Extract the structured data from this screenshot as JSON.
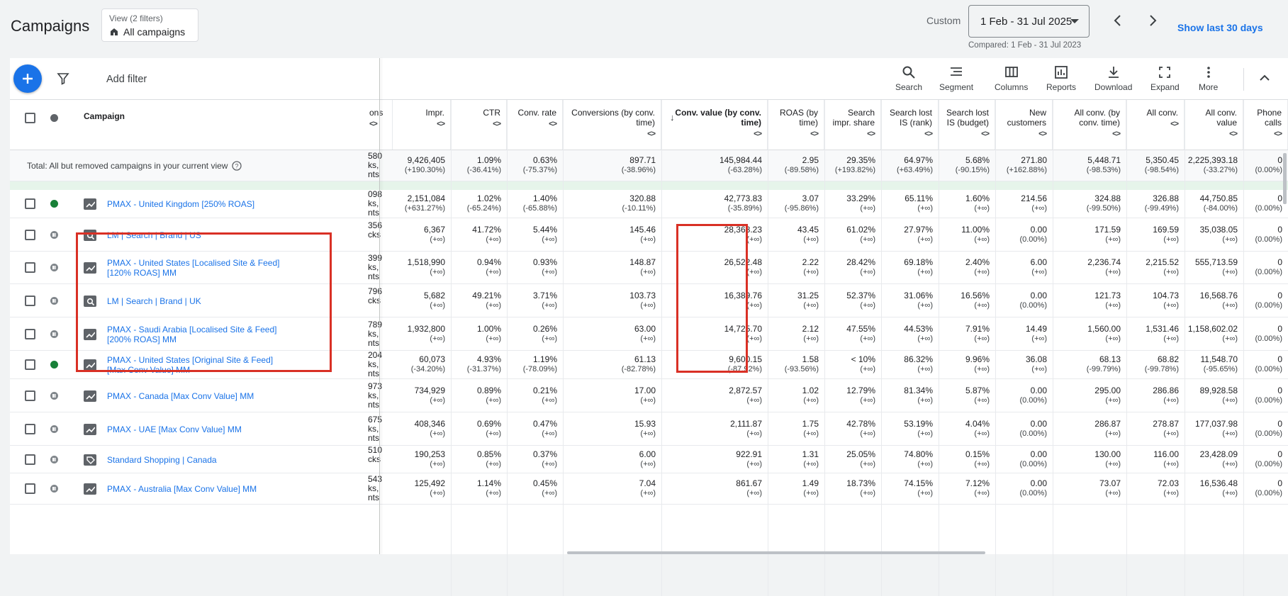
{
  "header": {
    "title": "Campaigns",
    "view_filters": "View (2 filters)",
    "view_name": "All campaigns",
    "custom_label": "Custom",
    "date_range": "1 Feb - 31 Jul 2025",
    "compared": "Compared: 1 Feb - 31 Jul 2023",
    "show_last": "Show last 30 days"
  },
  "toolbar": {
    "add_filter": "Add filter",
    "tools": [
      "Search",
      "Segment",
      "Columns",
      "Reports",
      "Download",
      "Expand",
      "More"
    ]
  },
  "columns": {
    "campaign": "Campaign",
    "partial": "ons",
    "list": [
      "Impr.",
      "CTR",
      "Conv. rate",
      "Conversions (by conv. time)",
      "Conv. value (by conv. time)",
      "ROAS (by time)",
      "Search impr. share",
      "Search lost IS (rank)",
      "Search lost IS (budget)",
      "New customers",
      "All conv. (by conv. time)",
      "All conv.",
      "All conv. value",
      "Phone calls"
    ],
    "sort_glyph": "<>"
  },
  "total": {
    "label": "Total: All but removed campaigns in your current view",
    "partial": [
      "580",
      "ks,",
      "nts"
    ],
    "values": [
      [
        "9,426,405",
        "(+190.30%)"
      ],
      [
        "1.09%",
        "(-36.41%)"
      ],
      [
        "0.63%",
        "(-75.37%)"
      ],
      [
        "897.71",
        "(-38.96%)"
      ],
      [
        "145,984.44",
        "(-63.28%)"
      ],
      [
        "2.95",
        "(-89.58%)"
      ],
      [
        "29.35%",
        "(+193.82%)"
      ],
      [
        "64.97%",
        "(+63.49%)"
      ],
      [
        "5.68%",
        "(-90.15%)"
      ],
      [
        "271.80",
        "(+162.88%)"
      ],
      [
        "5,448.71",
        "(-98.53%)"
      ],
      [
        "5,350.45",
        "(-98.54%)"
      ],
      [
        "2,225,393.18",
        "(-33.27%)"
      ],
      [
        "0",
        "(0.00%)"
      ]
    ]
  },
  "rows": [
    {
      "name": [
        "PMAX - United Kingdom [250% ROAS]"
      ],
      "status": "green",
      "type": "pmax",
      "partial": [
        "098",
        "ks,",
        "nts"
      ],
      "values": [
        [
          "2,151,084",
          "(+631.27%)"
        ],
        [
          "1.02%",
          "(-65.24%)"
        ],
        [
          "1.40%",
          "(-65.88%)"
        ],
        [
          "320.88",
          "(-10.11%)"
        ],
        [
          "42,773.83",
          "(-35.89%)"
        ],
        [
          "3.07",
          "(-95.86%)"
        ],
        [
          "33.29%",
          "(+∞)"
        ],
        [
          "65.11%",
          "(+∞)"
        ],
        [
          "1.60%",
          "(+∞)"
        ],
        [
          "214.56",
          "(+∞)"
        ],
        [
          "324.88",
          "(-99.50%)"
        ],
        [
          "326.88",
          "(-99.49%)"
        ],
        [
          "44,750.85",
          "(-84.00%)"
        ],
        [
          "0",
          "(0.00%)"
        ]
      ]
    },
    {
      "name": [
        "LM | Search | Brand | US"
      ],
      "status": "paused",
      "type": "search",
      "partial": [
        "356",
        "cks",
        ""
      ],
      "values": [
        [
          "6,367",
          "(+∞)"
        ],
        [
          "41.72%",
          "(+∞)"
        ],
        [
          "5.44%",
          "(+∞)"
        ],
        [
          "145.46",
          "(+∞)"
        ],
        [
          "28,368.23",
          "(+∞)"
        ],
        [
          "43.45",
          "(+∞)"
        ],
        [
          "61.02%",
          "(+∞)"
        ],
        [
          "27.97%",
          "(+∞)"
        ],
        [
          "11.00%",
          "(+∞)"
        ],
        [
          "0.00",
          "(0.00%)"
        ],
        [
          "171.59",
          "(+∞)"
        ],
        [
          "169.59",
          "(+∞)"
        ],
        [
          "35,038.05",
          "(+∞)"
        ],
        [
          "0",
          "(0.00%)"
        ]
      ]
    },
    {
      "name": [
        "PMAX - United States [Localised Site & Feed]",
        "[120% ROAS] MM"
      ],
      "status": "paused",
      "type": "pmax",
      "partial": [
        "399",
        "ks,",
        "nts"
      ],
      "values": [
        [
          "1,518,990",
          "(+∞)"
        ],
        [
          "0.94%",
          "(+∞)"
        ],
        [
          "0.93%",
          "(+∞)"
        ],
        [
          "148.87",
          "(+∞)"
        ],
        [
          "26,522.48",
          "(+∞)"
        ],
        [
          "2.22",
          "(+∞)"
        ],
        [
          "28.42%",
          "(+∞)"
        ],
        [
          "69.18%",
          "(+∞)"
        ],
        [
          "2.40%",
          "(+∞)"
        ],
        [
          "6.00",
          "(+∞)"
        ],
        [
          "2,236.74",
          "(+∞)"
        ],
        [
          "2,215.52",
          "(+∞)"
        ],
        [
          "555,713.59",
          "(+∞)"
        ],
        [
          "0",
          "(0.00%)"
        ]
      ]
    },
    {
      "name": [
        "LM | Search | Brand | UK"
      ],
      "status": "paused",
      "type": "search",
      "partial": [
        "796",
        "cks",
        ""
      ],
      "values": [
        [
          "5,682",
          "(+∞)"
        ],
        [
          "49.21%",
          "(+∞)"
        ],
        [
          "3.71%",
          "(+∞)"
        ],
        [
          "103.73",
          "(+∞)"
        ],
        [
          "16,389.76",
          "(+∞)"
        ],
        [
          "31.25",
          "(+∞)"
        ],
        [
          "52.37%",
          "(+∞)"
        ],
        [
          "31.06%",
          "(+∞)"
        ],
        [
          "16.56%",
          "(+∞)"
        ],
        [
          "0.00",
          "(0.00%)"
        ],
        [
          "121.73",
          "(+∞)"
        ],
        [
          "104.73",
          "(+∞)"
        ],
        [
          "16,568.76",
          "(+∞)"
        ],
        [
          "0",
          "(0.00%)"
        ]
      ]
    },
    {
      "name": [
        "PMAX - Saudi Arabia [Localised Site & Feed]",
        "[200% ROAS] MM"
      ],
      "status": "paused",
      "type": "pmax",
      "partial": [
        "789",
        "ks,",
        "nts"
      ],
      "values": [
        [
          "1,932,800",
          "(+∞)"
        ],
        [
          "1.00%",
          "(+∞)"
        ],
        [
          "0.26%",
          "(+∞)"
        ],
        [
          "63.00",
          "(+∞)"
        ],
        [
          "14,725.70",
          "(+∞)"
        ],
        [
          "2.12",
          "(+∞)"
        ],
        [
          "47.55%",
          "(+∞)"
        ],
        [
          "44.53%",
          "(+∞)"
        ],
        [
          "7.91%",
          "(+∞)"
        ],
        [
          "14.49",
          "(+∞)"
        ],
        [
          "1,560.00",
          "(+∞)"
        ],
        [
          "1,531.46",
          "(+∞)"
        ],
        [
          "1,158,602.02",
          "(+∞)"
        ],
        [
          "0",
          "(0.00%)"
        ]
      ]
    },
    {
      "name": [
        "PMAX - United States [Original Site & Feed]",
        "[Max Conv Value] MM"
      ],
      "status": "green",
      "type": "pmax",
      "partial": [
        "204",
        "ks,",
        "nts"
      ],
      "values": [
        [
          "60,073",
          "(-34.20%)"
        ],
        [
          "4.93%",
          "(-31.37%)"
        ],
        [
          "1.19%",
          "(-78.09%)"
        ],
        [
          "61.13",
          "(-82.78%)"
        ],
        [
          "9,600.15",
          "(-87.92%)"
        ],
        [
          "1.58",
          "(-93.56%)"
        ],
        [
          "< 10%",
          "(+∞)"
        ],
        [
          "86.32%",
          "(+∞)"
        ],
        [
          "9.96%",
          "(+∞)"
        ],
        [
          "36.08",
          "(+∞)"
        ],
        [
          "68.13",
          "(-99.79%)"
        ],
        [
          "68.82",
          "(-99.78%)"
        ],
        [
          "11,548.70",
          "(-95.65%)"
        ],
        [
          "0",
          "(0.00%)"
        ]
      ]
    },
    {
      "name": [
        "PMAX - Canada [Max Conv Value] MM"
      ],
      "status": "paused",
      "type": "pmax",
      "partial": [
        "973",
        "ks,",
        "nts"
      ],
      "values": [
        [
          "734,929",
          "(+∞)"
        ],
        [
          "0.89%",
          "(+∞)"
        ],
        [
          "0.21%",
          "(+∞)"
        ],
        [
          "17.00",
          "(+∞)"
        ],
        [
          "2,872.57",
          "(+∞)"
        ],
        [
          "1.02",
          "(+∞)"
        ],
        [
          "12.79%",
          "(+∞)"
        ],
        [
          "81.34%",
          "(+∞)"
        ],
        [
          "5.87%",
          "(+∞)"
        ],
        [
          "0.00",
          "(0.00%)"
        ],
        [
          "295.00",
          "(+∞)"
        ],
        [
          "286.86",
          "(+∞)"
        ],
        [
          "89,928.58",
          "(+∞)"
        ],
        [
          "0",
          "(0.00%)"
        ]
      ]
    },
    {
      "name": [
        "PMAX - UAE [Max Conv Value] MM"
      ],
      "status": "paused",
      "type": "pmax",
      "partial": [
        "675",
        "ks,",
        "nts"
      ],
      "values": [
        [
          "408,346",
          "(+∞)"
        ],
        [
          "0.69%",
          "(+∞)"
        ],
        [
          "0.47%",
          "(+∞)"
        ],
        [
          "15.93",
          "(+∞)"
        ],
        [
          "2,111.87",
          "(+∞)"
        ],
        [
          "1.75",
          "(+∞)"
        ],
        [
          "42.78%",
          "(+∞)"
        ],
        [
          "53.19%",
          "(+∞)"
        ],
        [
          "4.04%",
          "(+∞)"
        ],
        [
          "0.00",
          "(0.00%)"
        ],
        [
          "286.87",
          "(+∞)"
        ],
        [
          "278.87",
          "(+∞)"
        ],
        [
          "177,037.98",
          "(+∞)"
        ],
        [
          "0",
          "(0.00%)"
        ]
      ]
    },
    {
      "name": [
        "Standard Shopping | Canada"
      ],
      "status": "paused",
      "type": "shopping",
      "partial": [
        "510",
        "cks",
        ""
      ],
      "values": [
        [
          "190,253",
          "(+∞)"
        ],
        [
          "0.85%",
          "(+∞)"
        ],
        [
          "0.37%",
          "(+∞)"
        ],
        [
          "6.00",
          "(+∞)"
        ],
        [
          "922.91",
          "(+∞)"
        ],
        [
          "1.31",
          "(+∞)"
        ],
        [
          "25.05%",
          "(+∞)"
        ],
        [
          "74.80%",
          "(+∞)"
        ],
        [
          "0.15%",
          "(+∞)"
        ],
        [
          "0.00",
          "(0.00%)"
        ],
        [
          "130.00",
          "(+∞)"
        ],
        [
          "116.00",
          "(+∞)"
        ],
        [
          "23,428.09",
          "(+∞)"
        ],
        [
          "0",
          "(0.00%)"
        ]
      ]
    },
    {
      "name": [
        "PMAX - Australia [Max Conv Value] MM"
      ],
      "status": "paused",
      "type": "pmax",
      "partial": [
        "543",
        "ks,",
        "nts"
      ],
      "values": [
        [
          "125,492",
          "(+∞)"
        ],
        [
          "1.14%",
          "(+∞)"
        ],
        [
          "0.45%",
          "(+∞)"
        ],
        [
          "7.04",
          "(+∞)"
        ],
        [
          "861.67",
          "(+∞)"
        ],
        [
          "1.49",
          "(+∞)"
        ],
        [
          "18.73%",
          "(+∞)"
        ],
        [
          "74.15%",
          "(+∞)"
        ],
        [
          "7.12%",
          "(+∞)"
        ],
        [
          "0.00",
          "(0.00%)"
        ],
        [
          "73.07",
          "(+∞)"
        ],
        [
          "72.03",
          "(+∞)"
        ],
        [
          "16,536.48",
          "(+∞)"
        ],
        [
          "0",
          "(0.00%)"
        ]
      ]
    }
  ]
}
